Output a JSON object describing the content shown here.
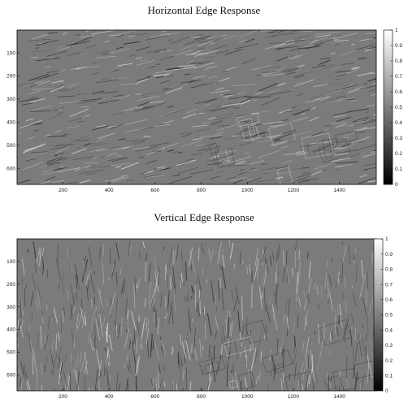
{
  "chart_data": [
    {
      "type": "heatmap",
      "title": "Horizontal Edge Response",
      "xlabel": "",
      "ylabel": "",
      "xlim": [
        1,
        1560
      ],
      "ylim": [
        1,
        670
      ],
      "y_reversed": true,
      "xticks": [
        200,
        400,
        600,
        800,
        1000,
        1200,
        1400
      ],
      "yticks": [
        100,
        200,
        300,
        400,
        500,
        600
      ],
      "colormap": "gray",
      "colorbar": {
        "range": [
          0,
          1
        ],
        "ticks": [
          0,
          0.1,
          0.2,
          0.3,
          0.4,
          0.5,
          0.6,
          0.7,
          0.8,
          0.9,
          1
        ]
      },
      "background_level": 0.5,
      "edge_orientation": "horizontal"
    },
    {
      "type": "heatmap",
      "title": "Vertical Edge Response",
      "xlabel": "",
      "ylabel": "",
      "xlim": [
        1,
        1560
      ],
      "ylim": [
        1,
        670
      ],
      "y_reversed": true,
      "xticks": [
        200,
        400,
        600,
        800,
        1000,
        1200,
        1400
      ],
      "yticks": [
        100,
        200,
        300,
        400,
        500,
        600
      ],
      "colormap": "gray",
      "colorbar": {
        "range": [
          0,
          1
        ],
        "ticks": [
          0,
          0.1,
          0.2,
          0.3,
          0.4,
          0.5,
          0.6,
          0.7,
          0.8,
          0.9,
          1
        ]
      },
      "background_level": 0.5,
      "edge_orientation": "vertical"
    }
  ],
  "colors": {
    "background_gray": "#7b7b7b",
    "axis": "#000000"
  }
}
